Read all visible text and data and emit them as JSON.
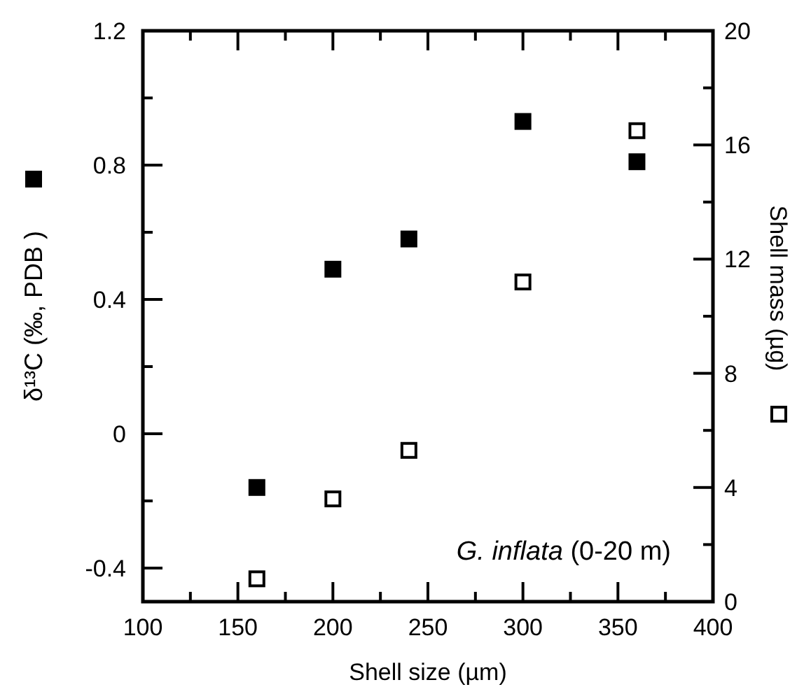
{
  "chart_data": {
    "type": "scatter",
    "xlabel": "Shell size (µm)",
    "ylabel": "δ¹³C (‰, PDB )",
    "y2label": "Shell mass (µg)",
    "x": [
      160,
      200,
      240,
      300,
      360
    ],
    "series": [
      {
        "color": "#000000",
        "values": [
          -0.16,
          0.49,
          0.58,
          0.93,
          0.81
        ]
      },
      {
        "color": "#ffffff",
        "axis": "y2",
        "values": [
          0.8,
          3.6,
          5.3,
          11.2,
          16.5
        ]
      }
    ],
    "xlim": [
      100,
      400
    ],
    "xticks": [
      100,
      {
        "value": 125,
        "label": null
      },
      150,
      {
        "value": 175,
        "label": null
      },
      200,
      {
        "value": 225,
        "label": null
      },
      250,
      {
        "value": 275,
        "label": null
      },
      300,
      {
        "value": 325,
        "label": null
      },
      350,
      {
        "value": 375,
        "label": null
      },
      400
    ],
    "ylim": [
      -0.5,
      1.2
    ],
    "yticks": [
      -0.4,
      {
        "value": -0.2,
        "label": null
      },
      0,
      {
        "value": 0.2,
        "label": null
      },
      0.4,
      {
        "value": 0.6,
        "label": null
      },
      0.8,
      {
        "value": 1.0,
        "label": null
      },
      1.2
    ],
    "y2lim": [
      0,
      20
    ],
    "y2ticks": [
      0,
      {
        "value": 2,
        "label": null
      },
      4,
      {
        "value": 6,
        "label": null
      },
      8,
      {
        "value": 10,
        "label": null
      },
      12,
      {
        "value": 14,
        "label": null
      },
      16,
      {
        "value": 18,
        "label": null
      },
      20
    ],
    "annotations": [
      "G. inflata (0-20 m)"
    ],
    "marker": "square",
    "grid": false
  }
}
